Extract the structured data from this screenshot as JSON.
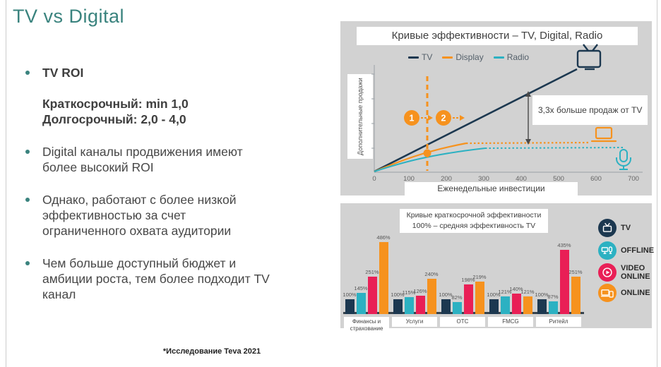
{
  "colors": {
    "accent": "#3A837E",
    "navy": "#1C3850",
    "teal": "#2CB1C2",
    "pink": "#E91F56",
    "orange": "#F6921E",
    "panel": "#D2D2D2",
    "bodytext": "#474747",
    "border": "#CCCCCC"
  },
  "slide": {
    "title": "TV vs Digital",
    "footnote": "*Исследование Teva 2021"
  },
  "bullets": {
    "b1": [
      "TV ROI"
    ],
    "b1_sub": [
      "Краткосрочный: min 1,0",
      "Долгосрочный: 2,0 - 4,0"
    ],
    "b2": [
      "Digital каналы продвижения имеют",
      "более высокий  ROI"
    ],
    "b3": [
      "Однако, работают с более низкой",
      "эффективностью за счет",
      "ограниченного охвата аудитории"
    ],
    "b4": [
      "Чем больше доступный бюджет и",
      "амбиции роста, тем более подходит TV",
      "канал"
    ]
  },
  "chart_data": [
    {
      "type": "line",
      "title": "Кривые эффективности – TV, Digital, Radio",
      "x_axis": {
        "label": "Еженедельные инвестиции",
        "ticks": [
          "0",
          "100",
          "200",
          "300",
          "400",
          "500",
          "600",
          "700"
        ],
        "range": [
          0,
          700
        ]
      },
      "y_axis": {
        "label": "Дополнительные продажи"
      },
      "series": [
        {
          "name": "TV",
          "color": "#1C3850",
          "shape": "linear",
          "style": "solid",
          "points": [
            [
              0,
              0
            ],
            [
              550,
              100
            ]
          ]
        },
        {
          "name": "Display",
          "color": "#F6921E",
          "shape": "saturating",
          "solid_until_x": 250,
          "dotted_to_x": 580,
          "points": [
            [
              0,
              0
            ],
            [
              75,
              12
            ],
            [
              150,
              17
            ],
            [
              250,
              21
            ],
            [
              580,
              21
            ]
          ]
        },
        {
          "name": "Radio",
          "color": "#2CB1C2",
          "shape": "saturating",
          "solid_until_x": 300,
          "dotted_to_x": 675,
          "points": [
            [
              0,
              0
            ],
            [
              75,
              10
            ],
            [
              150,
              15
            ],
            [
              300,
              17
            ],
            [
              675,
              17
            ]
          ]
        }
      ],
      "annotation": {
        "note": "3,3x больше продаж от TV",
        "vertical_dashed_line_x": 150,
        "stage_markers": [
          "1",
          "2"
        ]
      },
      "icons": [
        "tv-icon",
        "laptop-icon",
        "microphone-icon"
      ]
    },
    {
      "type": "bar",
      "title": "Кривые краткосрочной эффективности",
      "subtitle": "100% – средняя эффективность TV",
      "categories": [
        "Финансы и страхование",
        "Услуги",
        "ОТС",
        "FMCG",
        "Ритейл"
      ],
      "series": [
        {
          "name": "TV",
          "color": "#1C3850",
          "values": [
            100,
            100,
            100,
            100,
            100
          ]
        },
        {
          "name": "OFFLINE",
          "color": "#2CB1C2",
          "values": [
            145,
            115,
            82,
            121,
            87
          ]
        },
        {
          "name": "VIDEO ONLINE",
          "color": "#E91F56",
          "values": [
            251,
            126,
            198,
            140,
            435
          ]
        },
        {
          "name": "ONLINE",
          "color": "#F6921E",
          "values": [
            486,
            240,
            219,
            121,
            251
          ]
        }
      ],
      "value_suffix": "%",
      "ylim": [
        0,
        500
      ],
      "legend_position": "right"
    }
  ]
}
